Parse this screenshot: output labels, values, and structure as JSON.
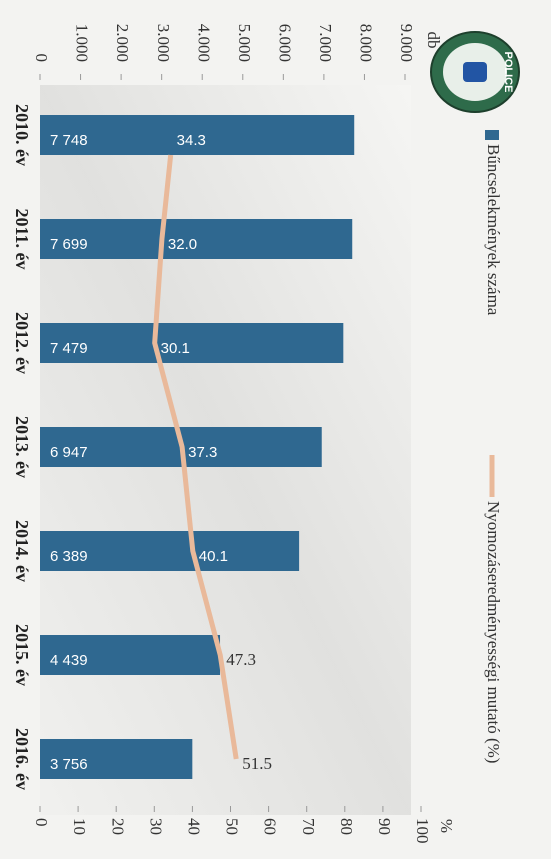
{
  "chart_data": {
    "type": "bar_line",
    "logo_text": "POLICE",
    "y_label": "db",
    "y2_label": "%",
    "categories": [
      "2010. év",
      "2011. év",
      "2012. év",
      "2013. év",
      "2014. év",
      "2015. év",
      "2016. év"
    ],
    "series": [
      {
        "name": "Bűncselekmények száma",
        "color": "#2f6890",
        "type": "bar",
        "values": [
          7748,
          7699,
          7479,
          6947,
          6389,
          4439,
          3756
        ],
        "value_labels": [
          "7 748",
          "7 699",
          "7 479",
          "6 947",
          "6 389",
          "4 439",
          "3 756"
        ]
      },
      {
        "name": "Nyomozáseredményességi mutató (%)",
        "color": "#e9b99a",
        "type": "line",
        "axis": "y2",
        "values": [
          34.3,
          32.0,
          30.1,
          37.3,
          40.1,
          47.3,
          51.5
        ],
        "value_labels": [
          "34.3",
          "32.0",
          "30.1",
          "37.3",
          "40.1",
          "47.3",
          "51.5"
        ]
      }
    ],
    "ylim": [
      0,
      9000
    ],
    "yticks": [
      0,
      {
        "value": 1000,
        "label": "1.000"
      },
      {
        "value": 2000,
        "label": "2.000"
      },
      {
        "value": 3000,
        "label": "3.000"
      },
      {
        "value": 4000,
        "label": "4.000"
      },
      {
        "value": 5000,
        "label": "5.000"
      },
      {
        "value": 6000,
        "label": "6.000"
      },
      {
        "value": 7000,
        "label": "7.000"
      },
      {
        "value": 8000,
        "label": "8.000"
      },
      {
        "value": 9000,
        "label": "9.000"
      }
    ],
    "y2lim": [
      0,
      100
    ],
    "y2ticks": [
      0,
      10,
      20,
      30,
      40,
      50,
      60,
      70,
      80,
      90,
      100
    ]
  }
}
